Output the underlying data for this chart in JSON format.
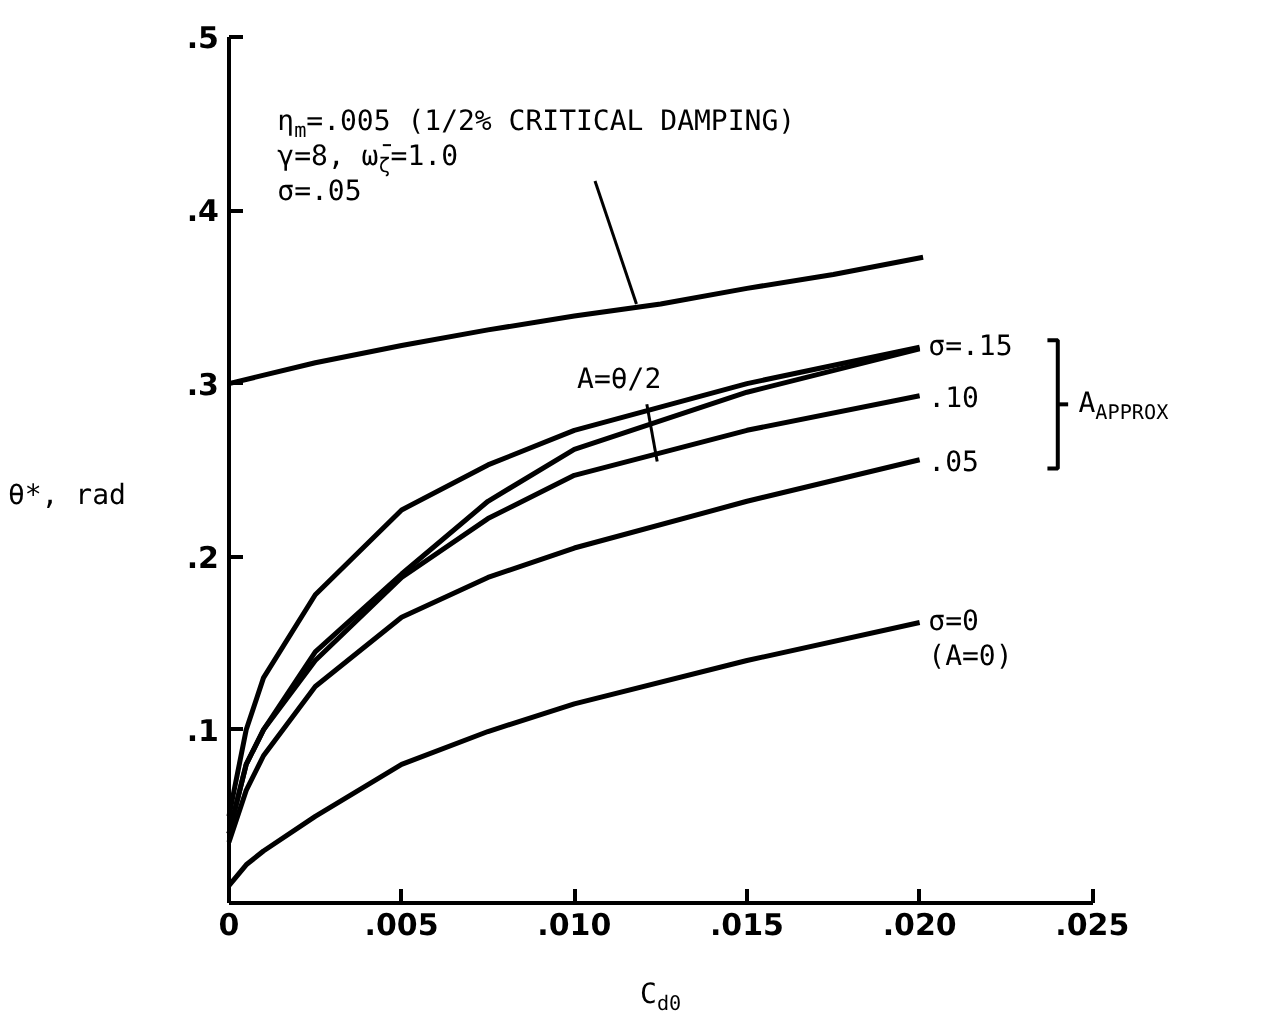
{
  "chart_data": {
    "type": "line",
    "xlabel": "C$_{d0}$",
    "ylabel": "θ*, rad",
    "xlim": [
      0,
      0.025
    ],
    "ylim": [
      0,
      0.5
    ],
    "xticks": [
      {
        "value": 0,
        "label": "0"
      },
      {
        "value": 0.005,
        "label": ".005"
      },
      {
        "value": 0.01,
        "label": ".010"
      },
      {
        "value": 0.015,
        "label": ".015"
      },
      {
        "value": 0.02,
        "label": ".020"
      },
      {
        "value": 0.025,
        "label": ".025"
      }
    ],
    "yticks": [
      {
        "value": 0,
        "label": null
      },
      {
        "value": 0.1,
        "label": ".1"
      },
      {
        "value": 0.2,
        "label": ".2"
      },
      {
        "value": 0.3,
        "label": ".3"
      },
      {
        "value": 0.4,
        "label": ".4"
      },
      {
        "value": 0.5,
        "label": ".5"
      }
    ],
    "grid": false,
    "series": [
      {
        "color": "#000000",
        "x": [
          0,
          0.0025,
          0.005,
          0.0075,
          0.01,
          0.0125,
          0.015,
          0.0175,
          0.0201
        ],
        "values": [
          0.3,
          0.312,
          0.322,
          0.331,
          0.339,
          0.346,
          0.355,
          0.363,
          0.373
        ]
      },
      {
        "name": "σ=.15",
        "color": "#000000",
        "x": [
          0,
          0.0005,
          0.001,
          0.0025,
          0.005,
          0.0075,
          0.01,
          0.015,
          0.02
        ],
        "values": [
          0.05,
          0.1,
          0.13,
          0.178,
          0.227,
          0.253,
          0.273,
          0.3,
          0.321
        ]
      },
      {
        "color": "#000000",
        "x": [
          0,
          0.0005,
          0.001,
          0.0025,
          0.005,
          0.0075,
          0.01,
          0.015,
          0.02
        ],
        "values": [
          0.04,
          0.08,
          0.1,
          0.145,
          0.19,
          0.232,
          0.262,
          0.295,
          0.32
        ]
      },
      {
        "name": ".10",
        "color": "#000000",
        "x": [
          0,
          0.0005,
          0.001,
          0.0025,
          0.005,
          0.0075,
          0.01,
          0.015,
          0.02
        ],
        "values": [
          0.04,
          0.08,
          0.1,
          0.14,
          0.188,
          0.222,
          0.247,
          0.273,
          0.293
        ]
      },
      {
        "name": ".05",
        "color": "#000000",
        "x": [
          0,
          0.0005,
          0.001,
          0.0025,
          0.005,
          0.0075,
          0.01,
          0.015,
          0.02
        ],
        "values": [
          0.035,
          0.065,
          0.085,
          0.125,
          0.165,
          0.188,
          0.205,
          0.232,
          0.256
        ]
      },
      {
        "name": "σ=0\n(A=0)",
        "color": "#000000",
        "x": [
          0,
          0.0005,
          0.001,
          0.0025,
          0.005,
          0.0075,
          0.01,
          0.015,
          0.02
        ],
        "values": [
          0.01,
          0.022,
          0.03,
          0.05,
          0.08,
          0.099,
          0.115,
          0.14,
          0.162
        ]
      }
    ],
    "annotations": [
      {
        "text": "η$_{m}$=.005 (1/2% CRITICAL DAMPING)\nγ=8, ω̄$_{ζ}$=1.0\nσ=.05",
        "x": 0.0118,
        "y": 0.346
      },
      {
        "text": "A=θ/2",
        "x": 0.0124,
        "y": 0.255
      },
      "A$_{APPROX}$"
    ]
  }
}
